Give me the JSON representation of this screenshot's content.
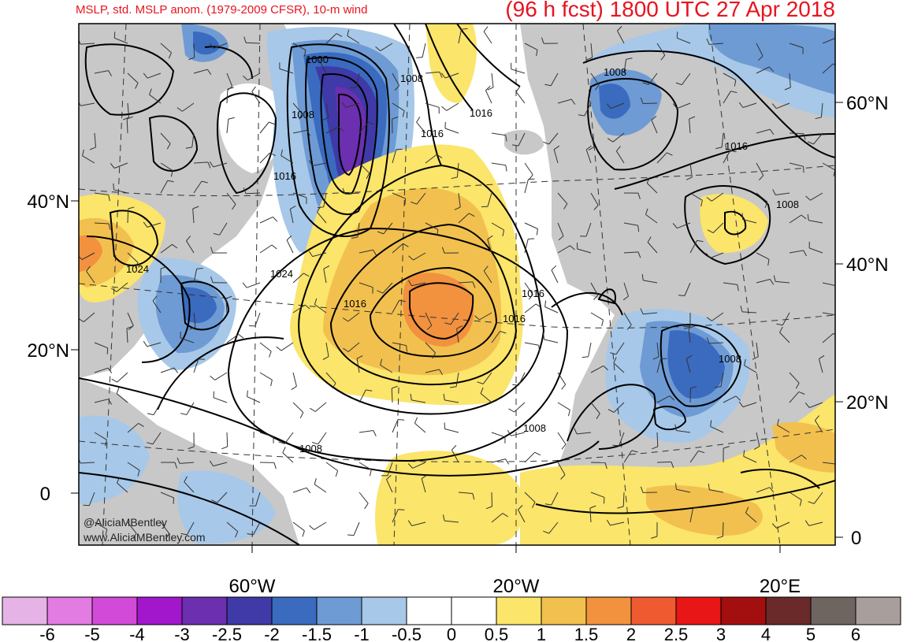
{
  "header": {
    "title_left": "MSLP, std. MSLP anom. (1979-2009 CFSR), 10-m wind",
    "title_right": "(96 h fcst) 1800 UTC 27 Apr 2018"
  },
  "colors": {
    "title": "#e8141e",
    "land_gray": "#c8c8c8",
    "ocean": "#ffffff"
  },
  "left_lat_labels": [
    "40°N",
    "20°N",
    "0"
  ],
  "right_lat_labels": [
    "60°N",
    "40°N",
    "20°N",
    "0"
  ],
  "lon_labels": [
    "60°W",
    "20°W",
    "20°E"
  ],
  "contour_labels": [
    "1000",
    "1008",
    "1008",
    "1016",
    "1016",
    "1016",
    "1024",
    "1024",
    "1016",
    "1016",
    "1016",
    "1008",
    "1008",
    "1008",
    "1016",
    "1008",
    "1008"
  ],
  "credit": {
    "handle": "@AliciaMBentley",
    "website": "www.AliciaMBentley.com"
  },
  "colorbar": {
    "colors": [
      "#e6b3e6",
      "#e27be2",
      "#d24ad8",
      "#a317cc",
      "#6b2fb0",
      "#3f3aa8",
      "#3a6bbf",
      "#6e9bd4",
      "#a7c8e8",
      "#ffffff",
      "#ffffff",
      "#fbe56a",
      "#f2c04e",
      "#f2913e",
      "#f05a30",
      "#e81616",
      "#a30f0f",
      "#6a2a2a",
      "#6e6460",
      "#a89e9b"
    ],
    "labels": [
      "-6",
      "-5",
      "-4",
      "-3",
      "-2.5",
      "-2",
      "-1.5",
      "-1",
      "-0.5",
      "0",
      "0.5",
      "1",
      "1.5",
      "2",
      "2.5",
      "3",
      "4",
      "5",
      "6"
    ]
  }
}
